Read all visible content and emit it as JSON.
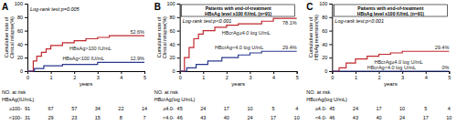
{
  "chart_data": [
    {
      "type": "step",
      "label": "A",
      "annotation": "Log-rank test:p=0.005",
      "xlabel": "years",
      "ylabel": [
        "Cumulative rate of",
        "Clinical relapse(%)"
      ],
      "xlim": [
        0,
        5
      ],
      "xticks": [
        0,
        1,
        2,
        3,
        4,
        5
      ],
      "ylim": [
        0,
        100
      ],
      "yticks": [
        0,
        20,
        40,
        60,
        80,
        100
      ],
      "series": [
        {
          "name": "HBsAg>100 IU/mL",
          "color": "#c0282d",
          "x": [
            0,
            0.25,
            0.4,
            0.6,
            0.8,
            1.0,
            1.5,
            2.0,
            2.5,
            3.0,
            3.5,
            5
          ],
          "values": [
            0,
            15,
            22,
            28,
            33,
            38,
            42,
            45,
            48,
            50,
            52.6,
            52.6
          ],
          "value_labels": [
            null,
            null,
            null,
            null,
            null,
            null,
            null,
            null,
            null,
            null,
            null,
            "52.6%"
          ]
        },
        {
          "name": "HBsAg<100 IU/mL",
          "color": "#2b3990",
          "x": [
            0,
            0.3,
            0.7,
            1.5,
            3.0,
            5
          ],
          "values": [
            0,
            4,
            8,
            10,
            12.9,
            12.9
          ],
          "value_labels": [
            null,
            null,
            null,
            null,
            null,
            "12.9%"
          ]
        }
      ],
      "risk_table": {
        "title": "NO. at risk",
        "group_label": "HBsAg(IU/mL)",
        "rows": [
          {
            "label": "≥100-",
            "values": [
              91,
              67,
              57,
              34,
              22,
              14
            ]
          },
          {
            "label": "<100-",
            "values": [
              31,
              29,
              23,
              15,
              8,
              7
            ]
          }
        ]
      }
    },
    {
      "type": "step",
      "label": "B",
      "title": [
        "Patients with end-of-treatment",
        "HBsAg level ≥100 IU/mL (n=91)"
      ],
      "annotation": "Log-rank test:p<0.001",
      "xlabel": "years",
      "ylabel": [
        "Cumulative rate of",
        "Clinical relapse(%)"
      ],
      "xlim": [
        0,
        5
      ],
      "xticks": [
        0,
        1,
        2,
        3,
        4,
        5
      ],
      "ylim": [
        0,
        100
      ],
      "yticks": [
        0,
        20,
        40,
        60,
        80,
        100
      ],
      "series": [
        {
          "name": "HBcrAg≥4.0 log U/mL",
          "color": "#c0282d",
          "x": [
            0,
            0.2,
            0.4,
            0.6,
            0.8,
            1.0,
            1.5,
            2.0,
            2.5,
            3.5,
            4.0,
            5
          ],
          "values": [
            0,
            20,
            35,
            48,
            55,
            60,
            65,
            68,
            70,
            74,
            78.1,
            78.1
          ],
          "value_labels": [
            null,
            null,
            null,
            null,
            null,
            null,
            null,
            null,
            null,
            null,
            null,
            "78.1%"
          ]
        },
        {
          "name": "HBcrAg<4.0 log U/mL",
          "color": "#2b3990",
          "x": [
            0,
            0.3,
            0.7,
            1.2,
            1.8,
            2.5,
            3.0,
            3.5,
            5
          ],
          "values": [
            0,
            5,
            10,
            15,
            20,
            24,
            27,
            29.4,
            29.4
          ],
          "value_labels": [
            null,
            null,
            null,
            null,
            null,
            null,
            null,
            null,
            "29.4%"
          ]
        }
      ],
      "risk_table": {
        "title": "NO. at risk",
        "group_label": "HBcrAg(log U/mL)",
        "rows": [
          {
            "label": "≥4.0-",
            "values": [
              45,
              24,
              17,
              10,
              5,
              4
            ]
          },
          {
            "label": "<4.0-",
            "values": [
              46,
              43,
              40,
              24,
              17,
              10
            ]
          }
        ]
      }
    },
    {
      "type": "step",
      "label": "C",
      "title": [
        "Patients with end-of-treatment",
        "HBsAg level ≥100 IU/mL (n=91)"
      ],
      "annotation": "Log-rank test:p<0.001",
      "xlabel": "years",
      "ylabel": [
        "Cumulative rate of",
        "HBsAg reversion(%)"
      ],
      "xlim": [
        0,
        5
      ],
      "xticks": [
        0,
        1,
        2,
        3,
        4,
        5
      ],
      "ylim": [
        0,
        100
      ],
      "yticks": [
        0,
        20,
        40,
        60,
        80,
        100
      ],
      "series": [
        {
          "name": "HBcrAg≥4.0 log U/mL",
          "color": "#c0282d",
          "x": [
            0,
            0.3,
            0.6,
            1.0,
            1.5,
            2.0,
            2.5,
            3.0,
            5
          ],
          "values": [
            0,
            5,
            12,
            18,
            22,
            25,
            27,
            29.4,
            29.4
          ],
          "value_labels": [
            null,
            null,
            null,
            null,
            null,
            null,
            null,
            null,
            "29.4%"
          ]
        },
        {
          "name": "HBcrAg<4.0 log U/mL",
          "color": "#2b3990",
          "x": [
            0,
            5
          ],
          "values": [
            0,
            0
          ],
          "value_labels": [
            null,
            "0%"
          ]
        }
      ],
      "risk_table": {
        "title": "NO. at risk",
        "group_label": "HBcrAg(log U/mL)",
        "rows": [
          {
            "label": "≥4.0-",
            "values": [
              45,
              24,
              17,
              10,
              5,
              4
            ]
          },
          {
            "label": "<4.0-",
            "values": [
              46,
              43,
              40,
              24,
              17,
              10
            ]
          }
        ]
      }
    }
  ]
}
